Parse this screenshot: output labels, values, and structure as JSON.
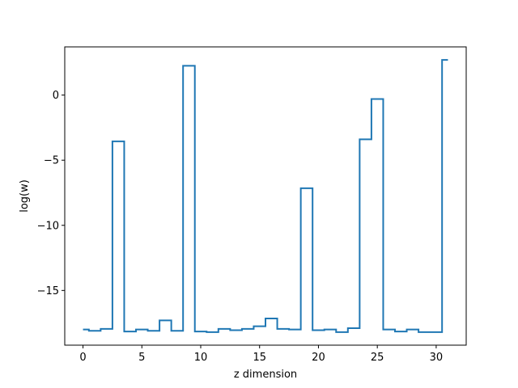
{
  "chart_data": {
    "type": "line",
    "drawstyle": "steps-mid",
    "title": "",
    "xlabel": "z dimension",
    "ylabel": "log(w)",
    "xlim": [
      -1.55,
      32.55
    ],
    "ylim": [
      -19.2,
      3.7
    ],
    "xticks": [
      0,
      5,
      10,
      15,
      20,
      25,
      30
    ],
    "yticks": [
      0,
      -5,
      -10,
      -15
    ],
    "ytick_labels": [
      "0",
      "−5",
      "−10",
      "−15"
    ],
    "grid": false,
    "legend": "none",
    "line_color": "#1f77b4",
    "x": [
      0,
      1,
      2,
      3,
      4,
      5,
      6,
      7,
      8,
      9,
      10,
      11,
      12,
      13,
      14,
      15,
      16,
      17,
      18,
      19,
      20,
      21,
      22,
      23,
      24,
      25,
      26,
      27,
      28,
      29,
      30,
      31
    ],
    "y": [
      -18.0,
      -18.1,
      -17.95,
      -3.55,
      -18.15,
      -18.0,
      -18.1,
      -17.3,
      -18.1,
      2.25,
      -18.15,
      -18.2,
      -17.95,
      -18.05,
      -17.95,
      -17.75,
      -17.15,
      -17.95,
      -18.0,
      -7.15,
      -18.05,
      -18.0,
      -18.2,
      -17.9,
      -3.4,
      -0.3,
      -18.0,
      -18.15,
      -18.0,
      -18.2,
      -18.2,
      2.7
    ]
  }
}
